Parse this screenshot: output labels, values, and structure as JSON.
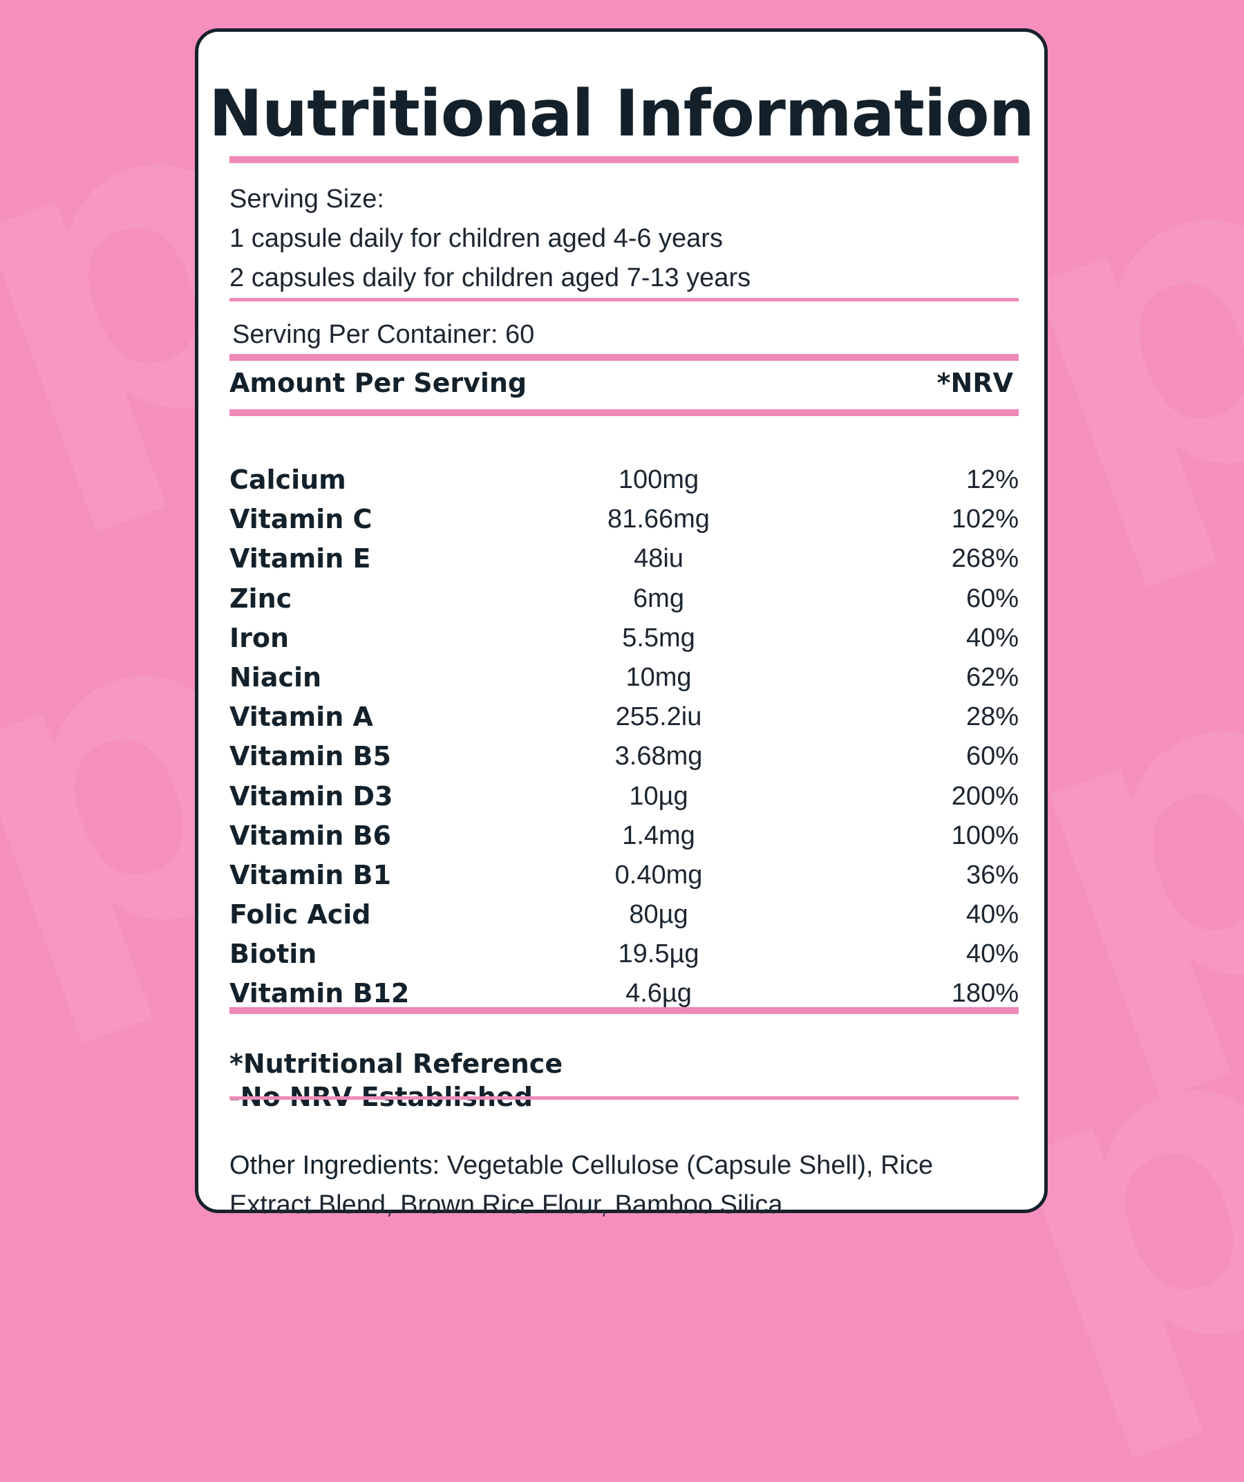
{
  "title": "Nutritional Information",
  "serving": {
    "label": "Serving Size:",
    "line1": "1 capsule daily for children aged 4-6 years",
    "line2": "2 capsules daily for children aged 7-13 years"
  },
  "servings_per_container": "Serving Per Container: 60",
  "table_header": {
    "amount": "Amount Per Serving",
    "nrv": "*NRV"
  },
  "nutrients": [
    {
      "name": "Calcium",
      "amount": "100mg",
      "nrv": "12%"
    },
    {
      "name": "Vitamin C",
      "amount": "81.66mg",
      "nrv": "102%"
    },
    {
      "name": "Vitamin E",
      "amount": "48iu",
      "nrv": "268%"
    },
    {
      "name": "Zinc",
      "amount": "6mg",
      "nrv": "60%"
    },
    {
      "name": "Iron",
      "amount": "5.5mg",
      "nrv": "40%"
    },
    {
      "name": "Niacin",
      "amount": "10mg",
      "nrv": "62%"
    },
    {
      "name": "Vitamin A",
      "amount": "255.2iu",
      "nrv": "28%"
    },
    {
      "name": "Vitamin B5",
      "amount": "3.68mg",
      "nrv": "60%"
    },
    {
      "name": "Vitamin D3",
      "amount": "10µg",
      "nrv": "200%"
    },
    {
      "name": "Vitamin B6",
      "amount": "1.4mg",
      "nrv": "100%"
    },
    {
      "name": "Vitamin B1",
      "amount": "0.40mg",
      "nrv": "36%"
    },
    {
      "name": "Folic Acid",
      "amount": "80µg",
      "nrv": "40%"
    },
    {
      "name": "Biotin",
      "amount": "19.5µg",
      "nrv": "40%"
    },
    {
      "name": "Vitamin B12",
      "amount": "4.6µg",
      "nrv": "180%"
    }
  ],
  "footnote": {
    "line1": "*Nutritional Reference",
    "line2": "-No NRV Established"
  },
  "other_ingredients": {
    "label": "Other Ingredients:",
    "text": " Vegetable Cellulose (Capsule Shell), Rice Extract Blend, Brown Rice Flour, Bamboo Silica."
  },
  "colors": {
    "background": "#f58fbd",
    "accent_rule": "#ef8ab8",
    "text": "#14212b",
    "card": "#ffffff"
  }
}
